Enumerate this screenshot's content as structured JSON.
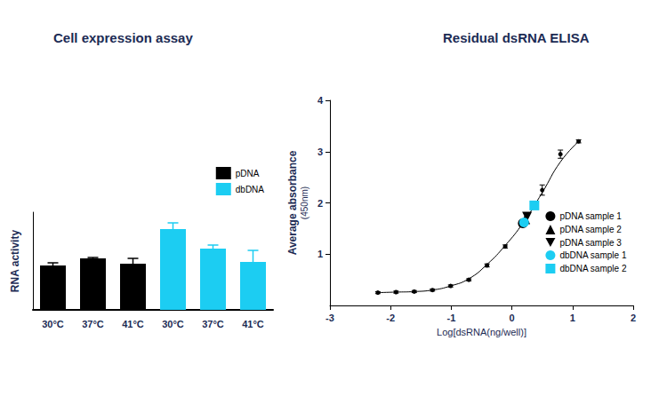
{
  "chart_data": [
    {
      "type": "bar",
      "title": "Cell expression assay",
      "ylabel": "RNA activity",
      "categories": [
        "30°C",
        "37°C",
        "41°C",
        "30°C",
        "37°C",
        "41°C"
      ],
      "series": [
        {
          "name": "pDNA",
          "color": "#000000",
          "values": [
            50,
            58,
            52,
            null,
            null,
            null
          ],
          "errors": [
            3,
            1,
            6,
            null,
            null,
            null
          ]
        },
        {
          "name": "dbDNA",
          "color": "#1ccdf2",
          "values": [
            null,
            null,
            null,
            91,
            69,
            54
          ],
          "errors": [
            null,
            null,
            null,
            7,
            4,
            13
          ]
        }
      ],
      "ylim": [
        0,
        110
      ],
      "tick_labels": "x",
      "legend": "upper right"
    },
    {
      "type": "scatter",
      "title": "Residual dsRNA ELISA",
      "xlabel": "Log[dsRNA(ng/well)]",
      "ylabel": "Average absorbance\n(450nm)",
      "xlim": [
        -3,
        2
      ],
      "xticks": [
        -3,
        -2,
        -1,
        0,
        1,
        2
      ],
      "ylim": [
        0,
        4
      ],
      "yticks": [
        1,
        2,
        3,
        4
      ],
      "legend": "right",
      "series": [
        {
          "type": "line",
          "color": "#000000",
          "line_style": "solid",
          "x": [
            -2.21,
            -1.91,
            -1.61,
            -1.31,
            -1.01,
            -0.71,
            -0.41,
            -0.11,
            0.19,
            0.5,
            0.8,
            1.1
          ],
          "values": [
            0.25,
            0.26,
            0.27,
            0.3,
            0.38,
            0.52,
            0.8,
            1.17,
            1.62,
            2.2,
            2.8,
            3.2
          ]
        },
        {
          "type": "scatter",
          "color": "#000000",
          "marker": "circle",
          "x": [
            -2.21,
            -1.91,
            -1.61,
            -1.31,
            -1.01,
            -0.71,
            -0.41,
            -0.11,
            0.19,
            0.5,
            0.8,
            1.1
          ],
          "values": [
            0.25,
            0.26,
            0.27,
            0.3,
            0.38,
            0.5,
            0.78,
            1.15,
            1.6,
            2.25,
            2.95,
            3.2
          ],
          "errors": [
            0.02,
            0.02,
            0.02,
            0.02,
            0.02,
            0.02,
            0.03,
            0.03,
            0.05,
            0.1,
            0.08,
            0.03
          ]
        },
        {
          "name": "pDNA sample 1",
          "type": "scatter",
          "color": "#000000",
          "marker": "circle",
          "x": [
            0.18
          ],
          "values": [
            1.6
          ]
        },
        {
          "name": "pDNA sample 2",
          "type": "scatter",
          "color": "#000000",
          "marker": "triangle-up",
          "x": [
            0.22
          ],
          "values": [
            1.68
          ]
        },
        {
          "name": "pDNA sample 3",
          "type": "scatter",
          "color": "#000000",
          "marker": "triangle-down",
          "x": [
            0.25
          ],
          "values": [
            1.73
          ]
        },
        {
          "name": "dbDNA sample 1",
          "type": "scatter",
          "color": "#1ccdf2",
          "marker": "circle",
          "x": [
            0.2
          ],
          "values": [
            1.62
          ]
        },
        {
          "name": "dbDNA sample 2",
          "type": "scatter",
          "color": "#1ccdf2",
          "marker": "square",
          "x": [
            0.37
          ],
          "values": [
            1.95
          ]
        }
      ]
    }
  ]
}
